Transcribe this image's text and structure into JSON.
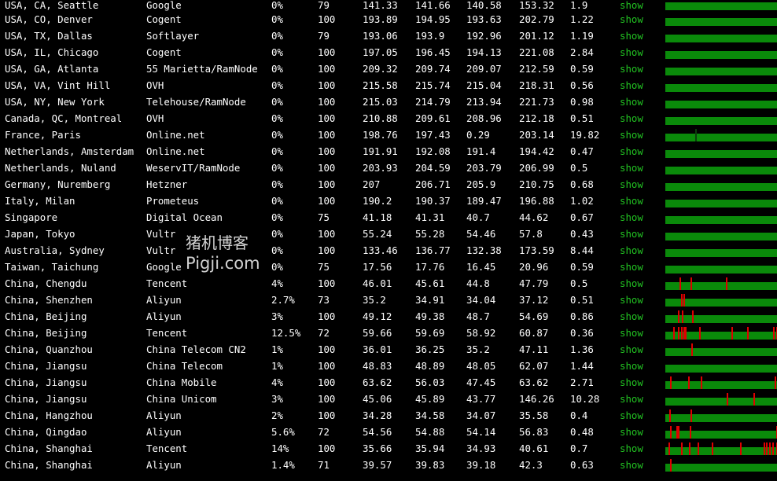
{
  "rows": [
    {
      "location": "USA, CA, Seattle",
      "provider": "Google",
      "loss": "0%",
      "sent": "79",
      "last": "141.33",
      "avg": "141.66",
      "best": "140.58",
      "worst": "153.32",
      "stdev": "1.9",
      "show": "show",
      "spikes": []
    },
    {
      "location": "USA, CO, Denver",
      "provider": "Cogent",
      "loss": "0%",
      "sent": "100",
      "last": "193.89",
      "avg": "194.95",
      "best": "193.63",
      "worst": "202.79",
      "stdev": "1.22",
      "show": "show",
      "spikes": []
    },
    {
      "location": "USA, TX, Dallas",
      "provider": "Softlayer",
      "loss": "0%",
      "sent": "79",
      "last": "193.06",
      "avg": "193.9",
      "best": "192.96",
      "worst": "201.12",
      "stdev": "1.19",
      "show": "show",
      "spikes": []
    },
    {
      "location": "USA, IL, Chicago",
      "provider": "Cogent",
      "loss": "0%",
      "sent": "100",
      "last": "197.05",
      "avg": "196.45",
      "best": "194.13",
      "worst": "221.08",
      "stdev": "2.84",
      "show": "show",
      "spikes": []
    },
    {
      "location": "USA, GA, Atlanta",
      "provider": "55 Marietta/RamNode",
      "loss": "0%",
      "sent": "100",
      "last": "209.32",
      "avg": "209.74",
      "best": "209.07",
      "worst": "212.59",
      "stdev": "0.59",
      "show": "show",
      "spikes": []
    },
    {
      "location": "USA, VA, Vint Hill",
      "provider": "OVH",
      "loss": "0%",
      "sent": "100",
      "last": "215.58",
      "avg": "215.74",
      "best": "215.04",
      "worst": "218.31",
      "stdev": "0.56",
      "show": "show",
      "spikes": []
    },
    {
      "location": "USA, NY, New York",
      "provider": "Telehouse/RamNode",
      "loss": "0%",
      "sent": "100",
      "last": "215.03",
      "avg": "214.79",
      "best": "213.94",
      "worst": "221.73",
      "stdev": "0.98",
      "show": "show",
      "spikes": []
    },
    {
      "location": "Canada, QC, Montreal",
      "provider": "OVH",
      "loss": "0%",
      "sent": "100",
      "last": "210.88",
      "avg": "209.61",
      "best": "208.96",
      "worst": "212.18",
      "stdev": "0.51",
      "show": "show",
      "spikes": []
    },
    {
      "location": "France, Paris",
      "provider": "Online.net",
      "loss": "0%",
      "sent": "100",
      "last": "198.76",
      "avg": "197.43",
      "best": "0.29",
      "worst": "203.14",
      "stdev": "19.82",
      "show": "show",
      "spikes": [],
      "dark": [
        38
      ]
    },
    {
      "location": "Netherlands, Amsterdam",
      "provider": "Online.net",
      "loss": "0%",
      "sent": "100",
      "last": "191.91",
      "avg": "192.08",
      "best": "191.4",
      "worst": "194.42",
      "stdev": "0.47",
      "show": "show",
      "spikes": []
    },
    {
      "location": "Netherlands, Nuland",
      "provider": "WeservIT/RamNode",
      "loss": "0%",
      "sent": "100",
      "last": "203.93",
      "avg": "204.59",
      "best": "203.79",
      "worst": "206.99",
      "stdev": "0.5",
      "show": "show",
      "spikes": []
    },
    {
      "location": "Germany, Nuremberg",
      "provider": "Hetzner",
      "loss": "0%",
      "sent": "100",
      "last": "207",
      "avg": "206.71",
      "best": "205.9",
      "worst": "210.75",
      "stdev": "0.68",
      "show": "show",
      "spikes": []
    },
    {
      "location": "Italy, Milan",
      "provider": "Prometeus",
      "loss": "0%",
      "sent": "100",
      "last": "190.2",
      "avg": "190.37",
      "best": "189.47",
      "worst": "196.88",
      "stdev": "1.02",
      "show": "show",
      "spikes": []
    },
    {
      "location": "Singapore",
      "provider": "Digital Ocean",
      "loss": "0%",
      "sent": "75",
      "last": "41.18",
      "avg": "41.31",
      "best": "40.7",
      "worst": "44.62",
      "stdev": "0.67",
      "show": "show",
      "spikes": []
    },
    {
      "location": "Japan, Tokyo",
      "provider": "Vultr",
      "loss": "0%",
      "sent": "100",
      "last": "55.24",
      "avg": "55.28",
      "best": "54.46",
      "worst": "57.8",
      "stdev": "0.43",
      "show": "show",
      "spikes": []
    },
    {
      "location": "Australia, Sydney",
      "provider": "Vultr",
      "loss": "0%",
      "sent": "100",
      "last": "133.46",
      "avg": "136.77",
      "best": "132.38",
      "worst": "173.59",
      "stdev": "8.44",
      "show": "show",
      "spikes": []
    },
    {
      "location": "Taiwan, Taichung",
      "provider": "Google",
      "loss": "0%",
      "sent": "75",
      "last": "17.56",
      "avg": "17.76",
      "best": "16.45",
      "worst": "20.96",
      "stdev": "0.59",
      "show": "show",
      "spikes": []
    },
    {
      "location": "China, Chengdu",
      "provider": "Tencent",
      "loss": "4%",
      "sent": "100",
      "last": "46.01",
      "avg": "45.61",
      "best": "44.8",
      "worst": "47.79",
      "stdev": "0.5",
      "show": "show",
      "spikes": [
        18,
        32,
        77
      ]
    },
    {
      "location": "China, Shenzhen",
      "provider": "Aliyun",
      "loss": "2.7%",
      "sent": "73",
      "last": "35.2",
      "avg": "34.91",
      "best": "34.04",
      "worst": "37.12",
      "stdev": "0.51",
      "show": "show",
      "spikes": [
        20,
        23
      ]
    },
    {
      "location": "China, Beijing",
      "provider": "Aliyun",
      "loss": "3%",
      "sent": "100",
      "last": "49.12",
      "avg": "49.38",
      "best": "48.7",
      "worst": "54.69",
      "stdev": "0.86",
      "show": "show",
      "spikes": [
        16,
        21,
        34
      ]
    },
    {
      "location": "China, Beijing",
      "provider": "Tencent",
      "loss": "12.5%",
      "sent": "72",
      "last": "59.66",
      "avg": "59.69",
      "best": "58.92",
      "worst": "60.87",
      "stdev": "0.36",
      "show": "show",
      "spikes": [
        10,
        16,
        20,
        23,
        25,
        43,
        84,
        104,
        137,
        141
      ]
    },
    {
      "location": "China, Quanzhou",
      "provider": "China Telecom CN2",
      "loss": "1%",
      "sent": "100",
      "last": "36.01",
      "avg": "36.25",
      "best": "35.2",
      "worst": "47.11",
      "stdev": "1.36",
      "show": "show",
      "spikes": [
        33
      ]
    },
    {
      "location": "China, Jiangsu",
      "provider": "China Telecom",
      "loss": "1%",
      "sent": "100",
      "last": "48.83",
      "avg": "48.89",
      "best": "48.05",
      "worst": "62.07",
      "stdev": "1.44",
      "show": "show",
      "spikes": []
    },
    {
      "location": "China, Jiangsu",
      "provider": "China Mobile",
      "loss": "4%",
      "sent": "100",
      "last": "63.62",
      "avg": "56.03",
      "best": "47.45",
      "worst": "63.62",
      "stdev": "2.71",
      "show": "show",
      "spikes": [
        6,
        29,
        45,
        139
      ]
    },
    {
      "location": "China, Jiangsu",
      "provider": "China Unicom",
      "loss": "3%",
      "sent": "100",
      "last": "45.06",
      "avg": "45.89",
      "best": "43.77",
      "worst": "146.26",
      "stdev": "10.28",
      "show": "show",
      "spikes": [
        78,
        112
      ]
    },
    {
      "location": "China, Hangzhou",
      "provider": "Aliyun",
      "loss": "2%",
      "sent": "100",
      "last": "34.28",
      "avg": "34.58",
      "best": "34.07",
      "worst": "35.58",
      "stdev": "0.4",
      "show": "show",
      "spikes": [
        5,
        32
      ]
    },
    {
      "location": "China, Qingdao",
      "provider": "Aliyun",
      "loss": "5.6%",
      "sent": "72",
      "last": "54.56",
      "avg": "54.88",
      "best": "54.14",
      "worst": "56.83",
      "stdev": "0.48",
      "show": "show",
      "spikes": [
        6,
        14,
        16,
        31,
        141
      ]
    },
    {
      "location": "China, Shanghai",
      "provider": "Tencent",
      "loss": "14%",
      "sent": "100",
      "last": "35.66",
      "avg": "35.94",
      "best": "34.93",
      "worst": "40.61",
      "stdev": "0.7",
      "show": "show",
      "spikes": [
        4,
        20,
        30,
        41,
        59,
        95,
        125,
        128,
        132,
        136,
        141
      ]
    },
    {
      "location": "China, Shanghai",
      "provider": "Aliyun",
      "loss": "1.4%",
      "sent": "71",
      "last": "39.57",
      "avg": "39.83",
      "best": "39.18",
      "worst": "42.3",
      "stdev": "0.63",
      "show": "show",
      "spikes": [
        6
      ]
    }
  ],
  "watermark": {
    "cn": "猪机博客",
    "en": "Pigji.com"
  },
  "colors": {
    "green_text": "#22c322",
    "bar_green": "#0a8a0a",
    "spike_red": "#e00000",
    "background": "#000000"
  }
}
